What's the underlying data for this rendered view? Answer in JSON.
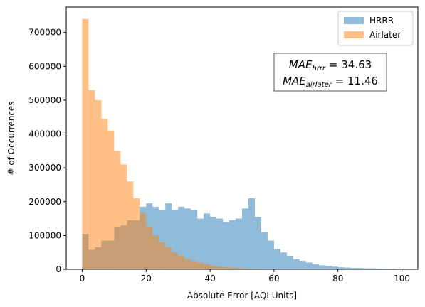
{
  "chart_data": {
    "type": "bar",
    "xlabel": "Absolute Error [AQI Units]",
    "ylabel": "# of Occurrences",
    "xlim": [
      -5,
      105
    ],
    "ylim": [
      0,
      775000
    ],
    "x_ticks": [
      0,
      20,
      40,
      60,
      80,
      100
    ],
    "y_ticks": [
      0,
      100000,
      200000,
      300000,
      400000,
      500000,
      600000,
      700000
    ],
    "bin_width": 2,
    "bin_starts": [
      0,
      2,
      4,
      6,
      8,
      10,
      12,
      14,
      16,
      18,
      20,
      22,
      24,
      26,
      28,
      30,
      32,
      34,
      36,
      38,
      40,
      42,
      44,
      46,
      48,
      50,
      52,
      54,
      56,
      58,
      60,
      62,
      64,
      66,
      68,
      70,
      72,
      74,
      76,
      78,
      80,
      82,
      84,
      86,
      88,
      90,
      92,
      94,
      96,
      98
    ],
    "series": [
      {
        "name": "HRRR",
        "color": "#1f77b4",
        "opacity": 0.5,
        "values": [
          105000,
          58000,
          65000,
          85000,
          85000,
          125000,
          130000,
          145000,
          145000,
          185000,
          195000,
          185000,
          175000,
          195000,
          175000,
          185000,
          180000,
          175000,
          150000,
          165000,
          155000,
          150000,
          140000,
          145000,
          150000,
          180000,
          210000,
          155000,
          110000,
          85000,
          60000,
          50000,
          40000,
          30000,
          25000,
          20000,
          15000,
          12000,
          10000,
          8000,
          6000,
          5000,
          4000,
          4000,
          3000,
          3000,
          2000,
          2000,
          2000,
          1000
        ]
      },
      {
        "name": "Airlater",
        "color": "#ff7f0e",
        "opacity": 0.5,
        "values": [
          740000,
          530000,
          500000,
          445000,
          410000,
          350000,
          310000,
          260000,
          210000,
          165000,
          125000,
          100000,
          80000,
          65000,
          50000,
          40000,
          30000,
          25000,
          20000,
          15000,
          10000,
          8000,
          6000,
          5000,
          4000,
          3000,
          2000,
          2000,
          1000,
          1000,
          1000,
          500,
          500,
          300,
          300,
          200,
          200,
          100,
          100,
          100,
          50,
          50,
          50,
          50,
          0,
          0,
          0,
          0,
          0,
          0
        ]
      }
    ],
    "legend": {
      "position": "top-right"
    },
    "annotation": {
      "line1_label": "MAE",
      "line1_sub": "hrrr",
      "line1_value": " = 34.63",
      "line2_label": "MAE",
      "line2_sub": "airlater",
      "line2_value": " = 11.46"
    }
  }
}
